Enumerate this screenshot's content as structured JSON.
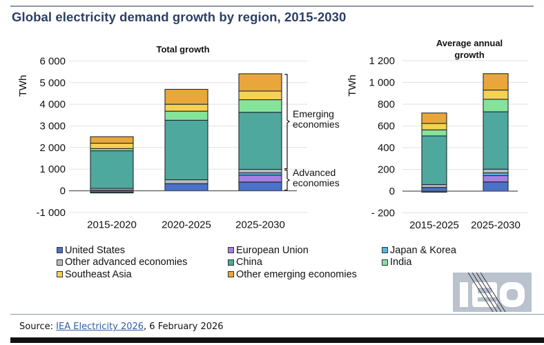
{
  "title": "Global electricity demand growth by region, 2015-2030",
  "chart_data": [
    {
      "type": "bar",
      "stacked": true,
      "title": "Total  growth",
      "ylabel": "TWh",
      "xlabel": "",
      "ylim": [
        -1000,
        6000
      ],
      "yticks": [
        -1000,
        0,
        1000,
        2000,
        3000,
        4000,
        5000,
        6000
      ],
      "ytick_labels": [
        "-1 000",
        "0",
        "1 000",
        "2 000",
        "3 000",
        "4 000",
        "5 000",
        "6 000"
      ],
      "grid": true,
      "categories": [
        "2015-2020",
        "2020-2025",
        "2025-2030"
      ],
      "series": [
        {
          "name": "United States",
          "values": [
            30,
            330,
            405
          ]
        },
        {
          "name": "European Union",
          "values": [
            -60,
            0,
            320
          ]
        },
        {
          "name": "Japan & Korea",
          "values": [
            -40,
            0,
            105
          ]
        },
        {
          "name": "Other advanced economies",
          "values": [
            80,
            180,
            160
          ]
        },
        {
          "name": "China",
          "values": [
            1740,
            2750,
            2640
          ]
        },
        {
          "name": "India",
          "values": [
            100,
            420,
            580
          ]
        },
        {
          "name": "Southeast Asia",
          "values": [
            250,
            320,
            400
          ]
        },
        {
          "name": "Other emerging economies",
          "values": [
            300,
            690,
            800
          ]
        }
      ],
      "annotations": [
        {
          "text": "Emerging economies",
          "lines": [
            "Emerging",
            "economies"
          ],
          "range": [
            990,
            5410
          ]
        },
        {
          "text": "Advanced economies",
          "lines": [
            "Advanced",
            "economies"
          ],
          "range": [
            0,
            990
          ]
        }
      ]
    },
    {
      "type": "bar",
      "stacked": true,
      "title": "Average annual growth",
      "title_lines": [
        "Average annual",
        "growth"
      ],
      "ylabel": "TWh",
      "xlabel": "",
      "ylim": [
        -200,
        1200
      ],
      "yticks": [
        -200,
        0,
        200,
        400,
        600,
        800,
        1000,
        1200
      ],
      "ytick_labels": [
        "- 200",
        "0",
        "200",
        "400",
        "600",
        "800",
        "1 000",
        "1 200"
      ],
      "grid": true,
      "categories": [
        "2015-2025",
        "2025-2030"
      ],
      "series": [
        {
          "name": "United States",
          "values": [
            34,
            85
          ]
        },
        {
          "name": "European Union",
          "values": [
            -6,
            58
          ]
        },
        {
          "name": "Japan & Korea",
          "values": [
            -2,
            25
          ]
        },
        {
          "name": "Other advanced economies",
          "values": [
            26,
            34
          ]
        },
        {
          "name": "China",
          "values": [
            448,
            528
          ]
        },
        {
          "name": "India",
          "values": [
            56,
            115
          ]
        },
        {
          "name": "Southeast Asia",
          "values": [
            59,
            85
          ]
        },
        {
          "name": "Other emerging economies",
          "values": [
            96,
            151
          ]
        }
      ]
    }
  ],
  "series_colors": {
    "United States": "#4a72c9",
    "European Union": "#a77fe0",
    "Japan & Korea": "#5cb4e2",
    "Other advanced economies": "#b9bcbf",
    "China": "#4fa89d",
    "India": "#86e39b",
    "Southeast Asia": "#f6d153",
    "Other emerging economies": "#e9a73b"
  },
  "legend": [
    {
      "label": "United States",
      "color": "#4a72c9"
    },
    {
      "label": "European Union",
      "color": "#a77fe0"
    },
    {
      "label": "Japan & Korea",
      "color": "#5cb4e2"
    },
    {
      "label": "Other advanced economies",
      "color": "#b9bcbf"
    },
    {
      "label": "China",
      "color": "#4fa89d"
    },
    {
      "label": "India",
      "color": "#86e39b"
    },
    {
      "label": "Southeast Asia",
      "color": "#f6d153"
    },
    {
      "label": "Other emerging economies",
      "color": "#e9a73b"
    }
  ],
  "logo": {
    "text": "iea",
    "icon": "iea-logo"
  },
  "source": {
    "prefix": "Source: ",
    "link_text": "IEA Electricity 2026",
    "suffix": ", 6 February 2026"
  }
}
